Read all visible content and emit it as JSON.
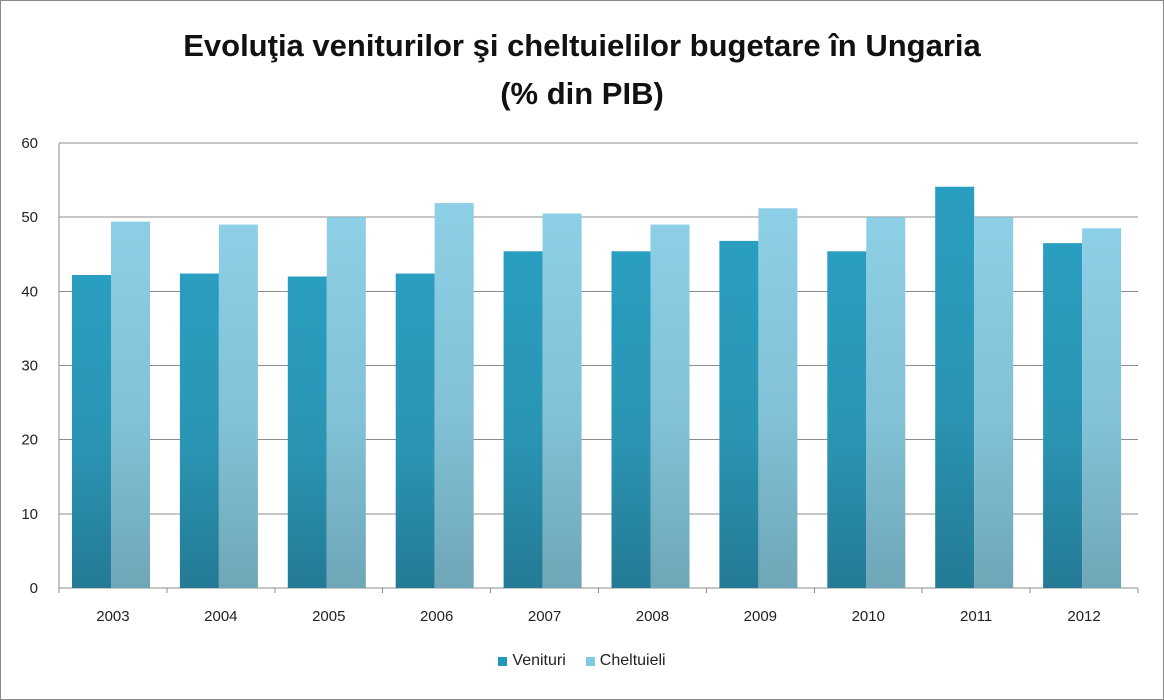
{
  "chart_data": {
    "type": "bar",
    "title": "Evoluţia veniturilor şi cheltuielilor bugetare în Ungaria",
    "subtitle": "(% din PIB)",
    "xlabel": "",
    "ylabel": "",
    "categories": [
      "2003",
      "2004",
      "2005",
      "2006",
      "2007",
      "2008",
      "2009",
      "2010",
      "2011",
      "2012"
    ],
    "series": [
      {
        "name": "Venituri",
        "color": "#2496b6",
        "values": [
          42.2,
          42.4,
          42.0,
          42.4,
          45.4,
          45.4,
          46.8,
          45.4,
          54.1,
          46.5
        ]
      },
      {
        "name": "Cheltuieli",
        "color": "#82c8e0",
        "values": [
          49.4,
          49.0,
          50.0,
          51.9,
          50.5,
          49.0,
          51.2,
          50.0,
          50.0,
          48.5
        ]
      }
    ],
    "ylim": [
      0,
      60
    ],
    "yticks": [
      0,
      10,
      20,
      30,
      40,
      50,
      60
    ],
    "grid": true,
    "legend_position": "bottom"
  }
}
